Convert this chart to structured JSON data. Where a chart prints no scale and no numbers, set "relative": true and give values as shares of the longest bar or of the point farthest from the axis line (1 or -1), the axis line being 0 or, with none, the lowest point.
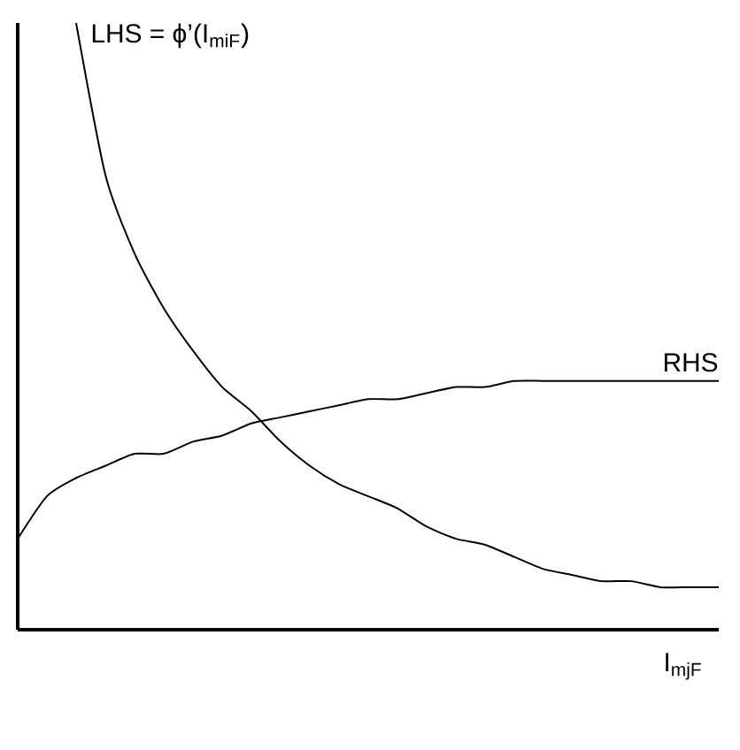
{
  "chart_data": {
    "type": "line",
    "relative": true,
    "xlabel": "I$_{mjF}$",
    "categories": [
      null,
      null,
      null,
      null,
      null,
      null,
      null,
      null,
      null,
      null,
      null,
      null,
      null,
      null,
      null,
      null,
      null,
      null,
      null,
      null,
      null,
      null,
      null,
      null,
      null
    ],
    "series": [
      {
        "name": "LHS = ϕ’(I$_{miF}$)",
        "color": "#000000",
        "values": [
          null,
          null,
          1.0,
          0.75,
          0.62,
          0.53,
          0.46,
          0.4,
          0.36,
          0.31,
          0.27,
          0.24,
          0.22,
          0.2,
          0.17,
          0.15,
          0.14,
          0.12,
          0.1,
          0.09,
          0.08,
          0.08,
          0.07,
          0.07,
          0.07
        ]
      },
      {
        "name": "RHS",
        "color": "#000000",
        "values": [
          0.15,
          0.22,
          0.25,
          0.27,
          0.29,
          0.29,
          0.31,
          0.32,
          0.34,
          0.35,
          0.36,
          0.37,
          0.38,
          0.38,
          0.39,
          0.4,
          0.4,
          0.41,
          0.41,
          0.41,
          0.41,
          0.41,
          0.41,
          0.41,
          0.41
        ]
      }
    ],
    "marker": "none",
    "line_style": "solid"
  }
}
